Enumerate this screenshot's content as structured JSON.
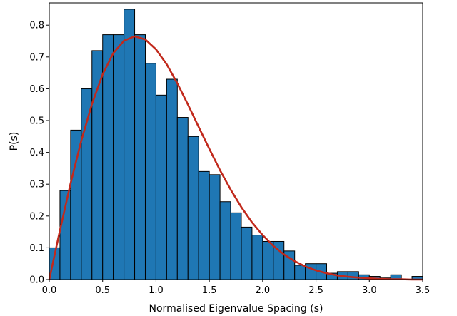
{
  "chart_data": {
    "type": "bar",
    "title": "",
    "xlabel": "Normalised Eigenvalue Spacing (s)",
    "ylabel": "P(s)",
    "xlim": [
      0.0,
      3.5
    ],
    "ylim": [
      0.0,
      0.87
    ],
    "xticks": [
      "0.0",
      "0.5",
      "1.0",
      "1.5",
      "2.0",
      "2.5",
      "3.0",
      "3.5"
    ],
    "yticks": [
      "0.0",
      "0.1",
      "0.2",
      "0.3",
      "0.4",
      "0.5",
      "0.6",
      "0.7",
      "0.8"
    ],
    "grid": false,
    "legend": "none",
    "bin_width": 0.1,
    "series": [
      {
        "type": "histogram",
        "color": "#1f77b4",
        "bin_starts": [
          0.0,
          0.1,
          0.2,
          0.3,
          0.4,
          0.5,
          0.6,
          0.7,
          0.8,
          0.9,
          1.0,
          1.1,
          1.2,
          1.3,
          1.4,
          1.5,
          1.6,
          1.7,
          1.8,
          1.9,
          2.0,
          2.1,
          2.2,
          2.3,
          2.4,
          2.5,
          2.6,
          2.7,
          2.8,
          2.9,
          3.0,
          3.1,
          3.2,
          3.3,
          3.4
        ],
        "values": [
          0.1,
          0.28,
          0.47,
          0.6,
          0.72,
          0.77,
          0.77,
          0.85,
          0.77,
          0.68,
          0.58,
          0.63,
          0.51,
          0.45,
          0.34,
          0.33,
          0.245,
          0.21,
          0.165,
          0.14,
          0.12,
          0.12,
          0.09,
          0.045,
          0.05,
          0.05,
          0.02,
          0.025,
          0.025,
          0.015,
          0.01,
          0.005,
          0.015,
          0.0,
          0.01
        ]
      },
      {
        "type": "line",
        "color": "#c1291c",
        "x": [
          0.0,
          0.1,
          0.2,
          0.3,
          0.4,
          0.5,
          0.6,
          0.7,
          0.8,
          0.9,
          1.0,
          1.1,
          1.2,
          1.3,
          1.4,
          1.5,
          1.6,
          1.7,
          1.8,
          1.9,
          2.0,
          2.1,
          2.2,
          2.3,
          2.4,
          2.5,
          2.6,
          2.7,
          2.8,
          2.9,
          3.0,
          3.1,
          3.2,
          3.3,
          3.4,
          3.5
        ],
        "y": [
          0.0,
          0.155,
          0.303,
          0.437,
          0.552,
          0.645,
          0.712,
          0.751,
          0.765,
          0.755,
          0.724,
          0.677,
          0.617,
          0.55,
          0.48,
          0.411,
          0.344,
          0.283,
          0.228,
          0.18,
          0.14,
          0.106,
          0.079,
          0.058,
          0.041,
          0.029,
          0.02,
          0.013,
          0.009,
          0.006,
          0.004,
          0.002,
          0.001,
          0.001,
          0.0,
          0.0
        ]
      }
    ]
  }
}
